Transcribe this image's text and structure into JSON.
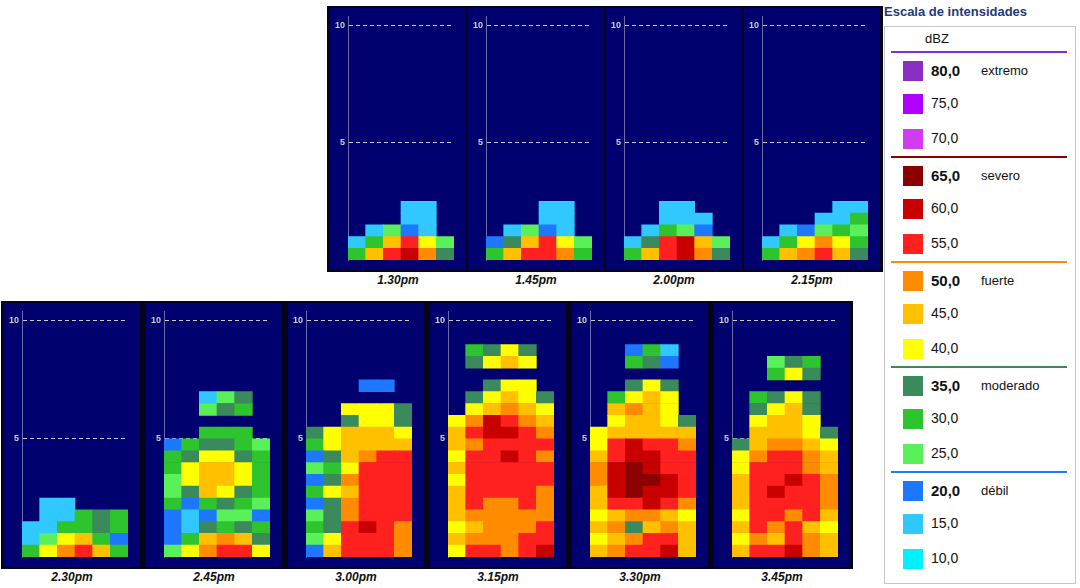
{
  "chart_data": [
    {
      "type": "heatmap",
      "title": "1.30pm",
      "ylim": [
        0,
        10.4
      ],
      "yticks": [
        5,
        10
      ],
      "grid": true,
      "tick_labels": "y",
      "row_step": 0.5,
      "cells": [
        [
          30,
          45,
          55,
          60,
          50,
          35
        ],
        [
          15,
          30,
          45,
          55,
          40,
          25
        ],
        [
          null,
          15,
          25,
          20,
          15,
          null
        ],
        [
          null,
          null,
          null,
          15,
          15,
          null
        ],
        [
          null,
          null,
          null,
          15,
          15,
          null
        ]
      ]
    },
    {
      "type": "heatmap",
      "title": "1.45pm",
      "ylim": [
        0,
        10.4
      ],
      "yticks": [
        5,
        10
      ],
      "grid": true,
      "tick_labels": "y",
      "row_step": 0.5,
      "cells": [
        [
          30,
          45,
          55,
          55,
          50,
          30
        ],
        [
          20,
          35,
          45,
          55,
          40,
          25
        ],
        [
          null,
          15,
          25,
          20,
          15,
          null
        ],
        [
          null,
          null,
          null,
          15,
          15,
          null
        ],
        [
          null,
          null,
          null,
          15,
          15,
          null
        ]
      ]
    },
    {
      "type": "heatmap",
      "title": "2.00pm",
      "ylim": [
        0,
        10.4
      ],
      "yticks": [
        5,
        10
      ],
      "grid": true,
      "tick_labels": "y",
      "row_step": 0.5,
      "cells": [
        [
          30,
          45,
          55,
          60,
          50,
          35
        ],
        [
          15,
          35,
          55,
          60,
          45,
          25
        ],
        [
          null,
          15,
          30,
          25,
          20,
          null
        ],
        [
          null,
          null,
          15,
          15,
          15,
          null
        ],
        [
          null,
          null,
          15,
          15,
          null,
          null
        ]
      ]
    },
    {
      "type": "heatmap",
      "title": "2.15pm",
      "ylim": [
        0,
        10.4
      ],
      "yticks": [
        5,
        10
      ],
      "grid": true,
      "tick_labels": "y",
      "row_step": 0.5,
      "cells": [
        [
          30,
          45,
          50,
          55,
          45,
          35
        ],
        [
          15,
          30,
          40,
          50,
          40,
          30
        ],
        [
          null,
          15,
          20,
          25,
          30,
          25
        ],
        [
          null,
          null,
          null,
          15,
          15,
          30
        ],
        [
          null,
          null,
          null,
          null,
          15,
          15
        ]
      ]
    },
    {
      "type": "heatmap",
      "title": "2.30pm",
      "ylim": [
        0,
        10.4
      ],
      "yticks": [
        5,
        10
      ],
      "grid": true,
      "tick_labels": "y",
      "row_step": 0.5,
      "cells": [
        [
          30,
          40,
          50,
          55,
          45,
          30
        ],
        [
          15,
          25,
          40,
          45,
          30,
          20
        ],
        [
          15,
          15,
          30,
          30,
          35,
          30
        ],
        [
          null,
          15,
          15,
          30,
          35,
          30
        ],
        [
          null,
          15,
          15,
          null,
          null,
          null
        ]
      ]
    },
    {
      "type": "heatmap",
      "title": "2.45pm",
      "ylim": [
        0,
        10.4
      ],
      "yticks": [
        5,
        10
      ],
      "grid": true,
      "tick_labels": "y",
      "row_step": 0.5,
      "cells": [
        [
          25,
          40,
          50,
          55,
          55,
          40
        ],
        [
          20,
          30,
          45,
          50,
          45,
          35
        ],
        [
          20,
          15,
          35,
          30,
          35,
          30
        ],
        [
          20,
          15,
          20,
          25,
          25,
          20
        ],
        [
          30,
          20,
          30,
          35,
          30,
          25
        ],
        [
          25,
          35,
          45,
          40,
          35,
          30
        ],
        [
          25,
          40,
          45,
          45,
          40,
          30
        ],
        [
          30,
          40,
          45,
          45,
          40,
          30
        ],
        [
          30,
          35,
          40,
          40,
          35,
          30
        ],
        [
          20,
          30,
          35,
          35,
          30,
          25
        ],
        [
          null,
          null,
          30,
          30,
          30,
          null
        ],
        [
          null,
          null,
          null,
          null,
          null,
          null
        ],
        [
          null,
          null,
          25,
          35,
          30,
          null
        ],
        [
          null,
          null,
          15,
          25,
          35,
          null
        ]
      ]
    },
    {
      "type": "heatmap",
      "title": "3.00pm",
      "ylim": [
        0,
        10.4
      ],
      "yticks": [
        5,
        10
      ],
      "grid": true,
      "tick_labels": "y",
      "row_step": 0.5,
      "cells": [
        [
          20,
          45,
          55,
          55,
          55,
          50
        ],
        [
          25,
          40,
          55,
          55,
          55,
          50
        ],
        [
          30,
          35,
          55,
          60,
          55,
          50
        ],
        [
          25,
          35,
          50,
          55,
          55,
          55
        ],
        [
          20,
          35,
          50,
          55,
          55,
          55
        ],
        [
          30,
          40,
          45,
          55,
          55,
          55
        ],
        [
          20,
          35,
          50,
          55,
          55,
          55
        ],
        [
          25,
          30,
          40,
          55,
          55,
          55
        ],
        [
          20,
          35,
          45,
          50,
          55,
          55
        ],
        [
          30,
          40,
          45,
          45,
          45,
          45
        ],
        [
          35,
          40,
          45,
          45,
          45,
          40
        ],
        [
          null,
          null,
          35,
          40,
          40,
          35
        ],
        [
          null,
          null,
          40,
          40,
          40,
          35
        ],
        [
          null,
          null,
          null,
          null,
          null,
          null
        ],
        [
          null,
          null,
          null,
          20,
          20,
          null
        ]
      ]
    },
    {
      "type": "heatmap",
      "title": "3.15pm",
      "ylim": [
        0,
        10.4
      ],
      "yticks": [
        5,
        10
      ],
      "grid": true,
      "tick_labels": "y",
      "row_step": 0.5,
      "cells": [
        [
          40,
          55,
          55,
          50,
          55,
          60
        ],
        [
          45,
          50,
          50,
          50,
          55,
          55
        ],
        [
          40,
          45,
          50,
          50,
          50,
          55
        ],
        [
          45,
          50,
          50,
          50,
          50,
          50
        ],
        [
          45,
          55,
          50,
          50,
          55,
          50
        ],
        [
          45,
          55,
          55,
          55,
          55,
          50
        ],
        [
          40,
          55,
          55,
          55,
          55,
          55
        ],
        [
          45,
          55,
          55,
          55,
          55,
          55
        ],
        [
          40,
          55,
          55,
          60,
          55,
          50
        ],
        [
          45,
          50,
          55,
          55,
          55,
          55
        ],
        [
          45,
          55,
          60,
          60,
          55,
          50
        ],
        [
          40,
          50,
          60,
          55,
          50,
          45
        ],
        [
          null,
          40,
          45,
          50,
          45,
          40
        ],
        [
          null,
          35,
          40,
          45,
          40,
          35
        ],
        [
          null,
          null,
          35,
          40,
          40,
          null
        ],
        [
          null,
          null,
          null,
          null,
          null,
          null
        ],
        [
          null,
          35,
          40,
          45,
          40,
          null
        ],
        [
          null,
          30,
          35,
          40,
          35,
          null
        ]
      ]
    },
    {
      "type": "heatmap",
      "title": "3.30pm",
      "ylim": [
        0,
        10.4
      ],
      "yticks": [
        5,
        10
      ],
      "grid": true,
      "tick_labels": "y",
      "row_step": 0.5,
      "cells": [
        [
          45,
          50,
          55,
          55,
          60,
          45
        ],
        [
          40,
          45,
          50,
          55,
          55,
          45
        ],
        [
          45,
          50,
          35,
          45,
          50,
          45
        ],
        [
          40,
          45,
          50,
          50,
          45,
          40
        ],
        [
          45,
          55,
          55,
          60,
          55,
          50
        ],
        [
          45,
          60,
          65,
          60,
          60,
          55
        ],
        [
          50,
          60,
          65,
          65,
          60,
          55
        ],
        [
          50,
          60,
          65,
          60,
          55,
          55
        ],
        [
          45,
          55,
          60,
          60,
          55,
          55
        ],
        [
          40,
          55,
          60,
          55,
          55,
          50
        ],
        [
          40,
          45,
          45,
          45,
          45,
          45
        ],
        [
          null,
          40,
          45,
          45,
          40,
          35
        ],
        [
          null,
          45,
          50,
          45,
          40,
          null
        ],
        [
          null,
          30,
          40,
          45,
          40,
          null
        ],
        [
          null,
          null,
          35,
          40,
          35,
          null
        ],
        [
          null,
          null,
          null,
          null,
          null,
          null
        ],
        [
          null,
          null,
          30,
          35,
          20,
          null
        ],
        [
          null,
          null,
          20,
          30,
          15,
          null
        ]
      ]
    },
    {
      "type": "heatmap",
      "title": "3.45pm",
      "ylim": [
        0,
        10.4
      ],
      "yticks": [
        5,
        10
      ],
      "grid": true,
      "tick_labels": "y",
      "row_step": 0.5,
      "cells": [
        [
          45,
          55,
          55,
          60,
          50,
          45
        ],
        [
          40,
          50,
          45,
          55,
          50,
          45
        ],
        [
          45,
          55,
          50,
          55,
          45,
          40
        ],
        [
          40,
          55,
          55,
          50,
          55,
          45
        ],
        [
          45,
          55,
          55,
          55,
          55,
          50
        ],
        [
          45,
          55,
          60,
          55,
          55,
          50
        ],
        [
          45,
          55,
          55,
          60,
          55,
          50
        ],
        [
          40,
          55,
          55,
          55,
          50,
          45
        ],
        [
          40,
          50,
          55,
          55,
          50,
          45
        ],
        [
          35,
          45,
          50,
          50,
          45,
          40
        ],
        [
          null,
          45,
          45,
          45,
          40,
          35
        ],
        [
          null,
          40,
          45,
          45,
          40,
          null
        ],
        [
          null,
          35,
          40,
          45,
          35,
          null
        ],
        [
          null,
          30,
          35,
          40,
          35,
          null
        ],
        [
          null,
          null,
          null,
          null,
          null,
          null
        ],
        [
          null,
          null,
          30,
          40,
          35,
          null
        ],
        [
          null,
          null,
          25,
          35,
          30,
          null
        ]
      ]
    }
  ],
  "color_bar": {
    "title": "Escala de intensidades",
    "unit": "dBZ",
    "levels": [
      {
        "value": 80,
        "label": "80,0",
        "category": "extremo",
        "color": "#8a2fc4"
      },
      {
        "value": 75,
        "label": "75,0",
        "color": "#b000ff"
      },
      {
        "value": 70,
        "label": "70,0",
        "color": "#d23cf0"
      },
      {
        "value": 65,
        "label": "65,0",
        "category": "severo",
        "color": "#8b0000"
      },
      {
        "value": 60,
        "label": "60,0",
        "color": "#c80000"
      },
      {
        "value": 55,
        "label": "55,0",
        "color": "#ff2020"
      },
      {
        "value": 50,
        "label": "50,0",
        "category": "fuerte",
        "color": "#ff8c00"
      },
      {
        "value": 45,
        "label": "45,0",
        "color": "#ffc000"
      },
      {
        "value": 40,
        "label": "40,0",
        "color": "#ffff00"
      },
      {
        "value": 35,
        "label": "35,0",
        "category": "moderado",
        "color": "#3a8a5c"
      },
      {
        "value": 30,
        "label": "30,0",
        "color": "#2ec42e"
      },
      {
        "value": 25,
        "label": "25,0",
        "color": "#5af05a"
      },
      {
        "value": 20,
        "label": "20,0",
        "category": "débil",
        "color": "#1e78ff"
      },
      {
        "value": 15,
        "label": "15,0",
        "color": "#30c8ff"
      },
      {
        "value": 10,
        "label": "10,0",
        "color": "#00f0ff"
      }
    ]
  }
}
